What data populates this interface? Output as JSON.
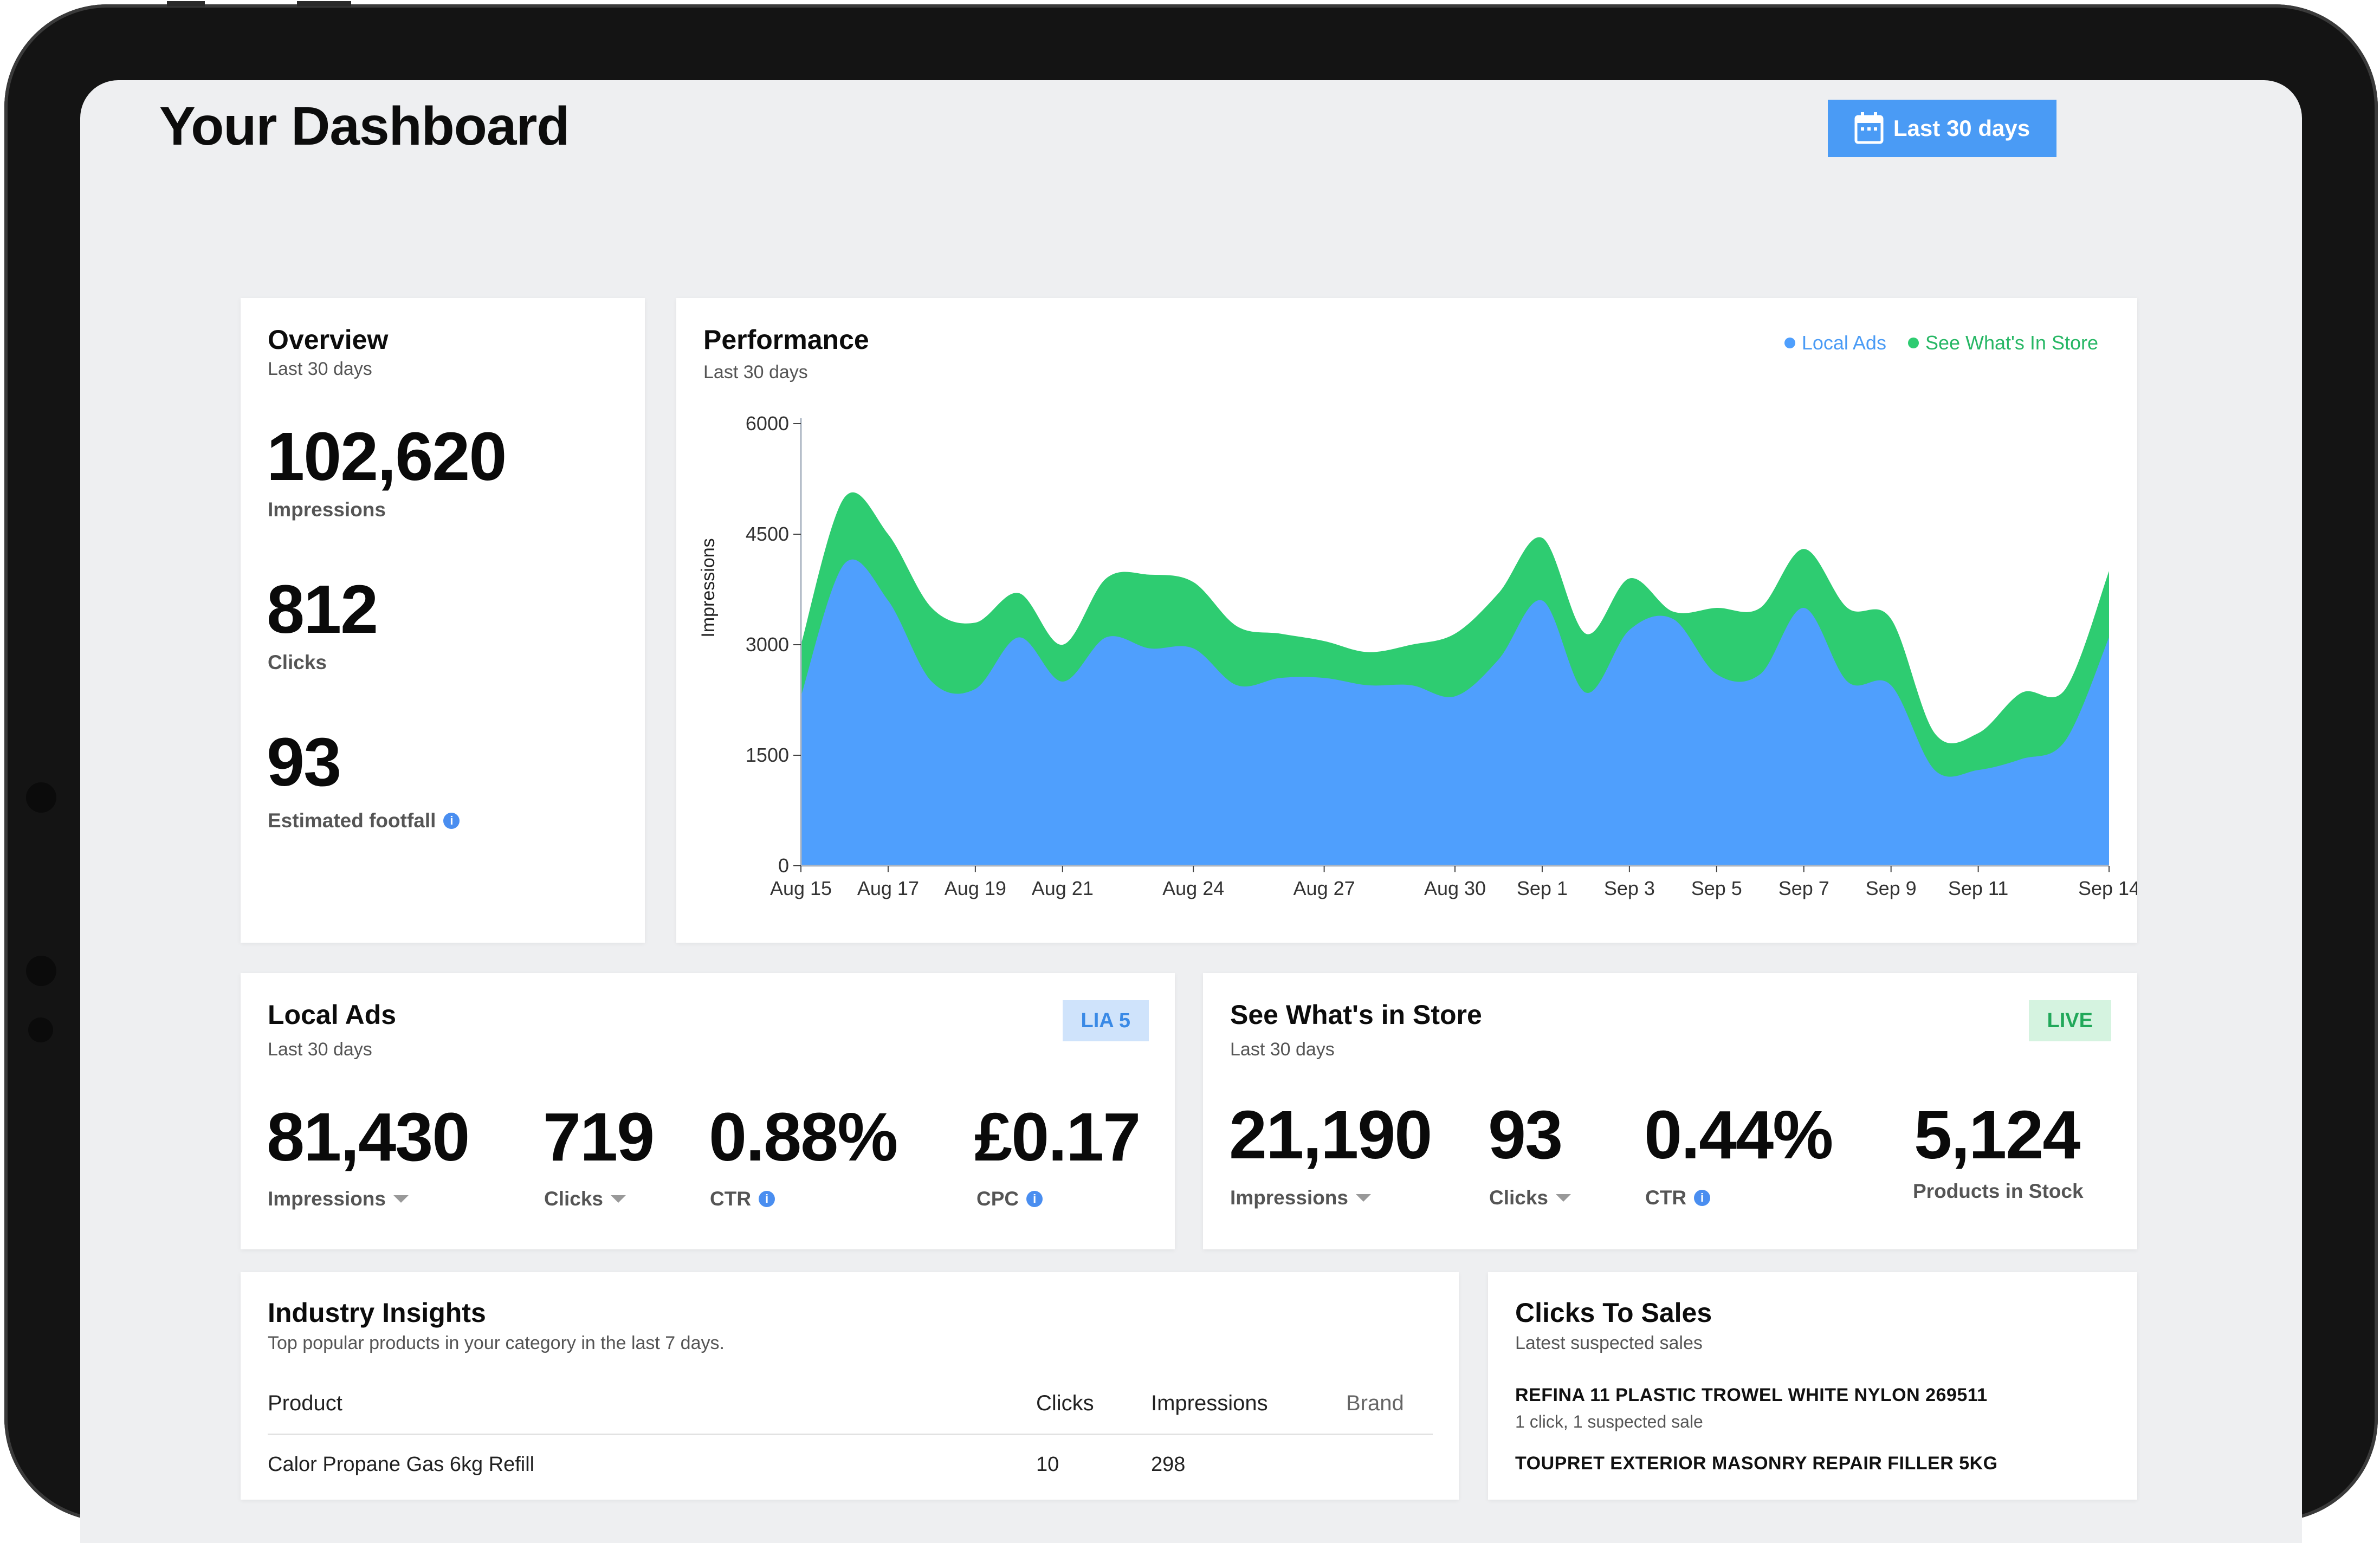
{
  "header": {
    "title": "Your Dashboard",
    "date_range_label": "Last 30 days"
  },
  "overview": {
    "title": "Overview",
    "subtitle": "Last 30 days",
    "impressions_value": "102,620",
    "impressions_label": "Impressions",
    "clicks_value": "812",
    "clicks_label": "Clicks",
    "footfall_value": "93",
    "footfall_label": "Estimated footfall",
    "info_glyph": "i"
  },
  "performance": {
    "title": "Performance",
    "subtitle": "Last 30 days",
    "legend": {
      "local_ads": "Local Ads",
      "see_whats_in_store": "See What's In Store"
    }
  },
  "chart_data": {
    "type": "area",
    "title": "Performance",
    "ylabel": "Impressions",
    "xlabel": "",
    "ylim": [
      0,
      6000
    ],
    "yticks": [
      0,
      1500,
      3000,
      4500,
      6000
    ],
    "x": [
      0,
      1,
      2,
      3,
      4,
      5,
      6,
      7,
      8,
      9,
      10,
      11,
      12,
      13,
      14,
      15,
      16,
      17,
      18,
      19,
      20,
      21,
      22,
      23,
      24,
      25,
      26,
      27,
      28,
      29,
      30
    ],
    "tick_labels": [
      {
        "x": 0,
        "label": "Aug 15"
      },
      {
        "x": 2,
        "label": "Aug 17"
      },
      {
        "x": 4,
        "label": "Aug 19"
      },
      {
        "x": 6,
        "label": "Aug 21"
      },
      {
        "x": 9,
        "label": "Aug 24"
      },
      {
        "x": 12,
        "label": "Aug 27"
      },
      {
        "x": 15,
        "label": "Aug 30"
      },
      {
        "x": 17,
        "label": "Sep 1"
      },
      {
        "x": 19,
        "label": "Sep 3"
      },
      {
        "x": 21,
        "label": "Sep 5"
      },
      {
        "x": 23,
        "label": "Sep 7"
      },
      {
        "x": 25,
        "label": "Sep 9"
      },
      {
        "x": 27,
        "label": "Sep 11"
      },
      {
        "x": 30,
        "label": "Sep 14"
      }
    ],
    "series": [
      {
        "name": "Local Ads",
        "color": "#4f9ffd",
        "values": [
          2300,
          4100,
          3600,
          2500,
          2400,
          3100,
          2500,
          3100,
          2950,
          2950,
          2450,
          2550,
          2550,
          2450,
          2450,
          2300,
          2800,
          3600,
          2350,
          3200,
          3350,
          2600,
          2600,
          3500,
          2500,
          2450,
          1300,
          1300,
          1450,
          1700,
          3100
        ]
      },
      {
        "name": "See What's In Store",
        "color": "#2ecc71",
        "values": [
          700,
          900,
          900,
          1000,
          900,
          600,
          500,
          800,
          1000,
          900,
          800,
          600,
          500,
          450,
          550,
          850,
          900,
          850,
          800,
          700,
          100,
          900,
          900,
          800,
          1000,
          900,
          500,
          500,
          900,
          700,
          900
        ]
      }
    ]
  },
  "local_ads": {
    "title": "Local Ads",
    "subtitle": "Last 30 days",
    "badge": "LIA 5",
    "impressions_value": "81,430",
    "impressions_label": "Impressions",
    "clicks_value": "719",
    "clicks_label": "Clicks",
    "ctr_value": "0.88%",
    "ctr_label": "CTR",
    "cpc_value": "£0.17",
    "cpc_label": "CPC"
  },
  "in_store": {
    "title": "See What's in Store",
    "subtitle": "Last 30 days",
    "badge": "LIVE",
    "impressions_value": "21,190",
    "impressions_label": "Impressions",
    "clicks_value": "93",
    "clicks_label": "Clicks",
    "ctr_value": "0.44%",
    "ctr_label": "CTR",
    "stock_value": "5,124",
    "stock_label": "Products in Stock"
  },
  "industry_insights": {
    "title": "Industry Insights",
    "subtitle": "Top popular products in your category in the last 7 days.",
    "columns": {
      "product": "Product",
      "clicks": "Clicks",
      "impressions": "Impressions",
      "brand": "Brand"
    },
    "rows": [
      {
        "product": "Calor Propane Gas 6kg Refill",
        "clicks": "10",
        "impressions": "298"
      }
    ]
  },
  "clicks_to_sales": {
    "title": "Clicks To Sales",
    "subtitle": "Latest suspected sales",
    "items": [
      {
        "name": "REFINA 11 PLASTIC TROWEL WHITE NYLON 269511",
        "detail": "1 click, 1 suspected sale"
      },
      {
        "name": "TOUPRET EXTERIOR MASONRY REPAIR FILLER 5KG"
      }
    ]
  },
  "colors": {
    "accent_blue": "#4a9bf5",
    "local_ads_blue": "#4f9ffd",
    "store_green": "#2ecc71",
    "badge_blue_bg": "#cfe3fb",
    "badge_green_bg": "#d5f3e0"
  }
}
